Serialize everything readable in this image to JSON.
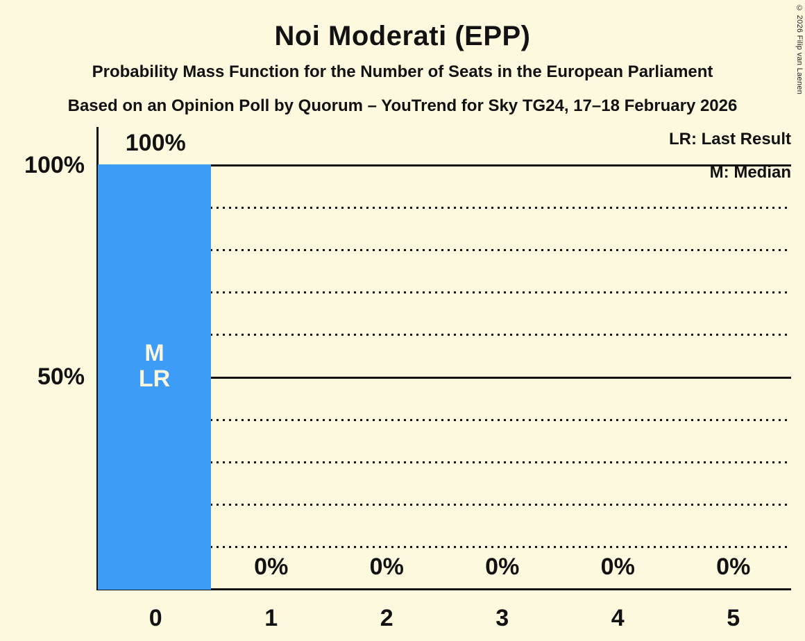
{
  "title": "Noi Moderati (EPP)",
  "subtitle": "Probability Mass Function for the Number of Seats in the European Parliament",
  "source_line": "Based on an Opinion Poll by Quorum – YouTrend for Sky TG24, 17–18 February 2026",
  "copyright": "© 2026 Filip van Laenen",
  "legend": {
    "lr": "LR: Last Result",
    "m": "M: Median"
  },
  "y_axis": {
    "labels": [
      "100%",
      "50%"
    ]
  },
  "bar_annotations": [
    "M",
    "LR"
  ],
  "colors": {
    "background": "#FDF9DE",
    "bar": "#3D9CF5",
    "text": "#121212",
    "bar_annotation_text": "#FAF5DE"
  },
  "chart_data": {
    "type": "bar",
    "categories": [
      "0",
      "1",
      "2",
      "3",
      "4",
      "5"
    ],
    "values": [
      100,
      0,
      0,
      0,
      0,
      0
    ],
    "bar_value_labels": [
      "100%",
      "0%",
      "0%",
      "0%",
      "0%",
      "0%"
    ],
    "title": "Noi Moderati (EPP)",
    "xlabel": "",
    "ylabel": "",
    "ylim": [
      0,
      100
    ],
    "y_tick_labels": [
      "100%",
      "50%"
    ],
    "y_solid_gridlines_pct": [
      100,
      50
    ],
    "y_dotted_gridlines_pct": [
      90,
      80,
      70,
      60,
      40,
      30,
      20,
      10
    ],
    "legend_position": "top-right",
    "median_category": "0",
    "last_result_category": "0",
    "grid": true
  }
}
